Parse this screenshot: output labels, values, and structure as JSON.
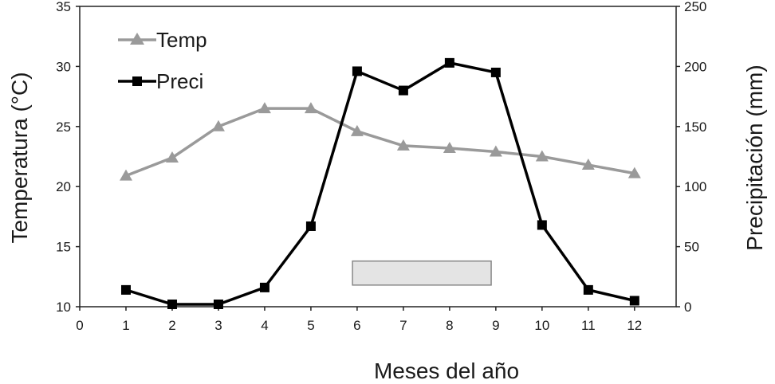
{
  "chart_data": {
    "type": "line",
    "title": "",
    "xlabel": "Meses del año",
    "ylabel_left": "Temperatura (°C)",
    "ylabel_right": "Precipitación (mm)",
    "x_ticks": [
      "0",
      "1",
      "2",
      "3",
      "4",
      "5",
      "6",
      "7",
      "8",
      "9",
      "10",
      "11",
      "12"
    ],
    "xlim": [
      0,
      12.9
    ],
    "ylim_left": [
      10,
      35
    ],
    "ylim_right": [
      0,
      250
    ],
    "y_ticks_left": [
      "10",
      "15",
      "20",
      "25",
      "30",
      "35"
    ],
    "y_ticks_right": [
      "0",
      "50",
      "100",
      "150",
      "200",
      "250"
    ],
    "x": [
      1,
      2,
      3,
      4,
      5,
      6,
      7,
      8,
      9,
      10,
      11,
      12
    ],
    "series": [
      {
        "name": "Temp",
        "axis": "left",
        "color": "#9a9a9a",
        "marker": "triangle",
        "values": [
          20.9,
          22.4,
          25.0,
          26.5,
          26.5,
          24.6,
          23.4,
          23.2,
          22.9,
          22.5,
          21.8,
          21.1
        ]
      },
      {
        "name": "Preci",
        "axis": "right",
        "color": "#000000",
        "marker": "square",
        "values": [
          14,
          2,
          2,
          16,
          67,
          196,
          180,
          203,
          195,
          68,
          14,
          5
        ]
      }
    ],
    "dry_season_box": {
      "x_start": 5.9,
      "x_end": 8.9,
      "y_bottom": 11.8,
      "y_top": 13.8,
      "axis": "left",
      "fill": "#e4e4e4"
    },
    "grid": false,
    "legend_position": "top-left"
  }
}
